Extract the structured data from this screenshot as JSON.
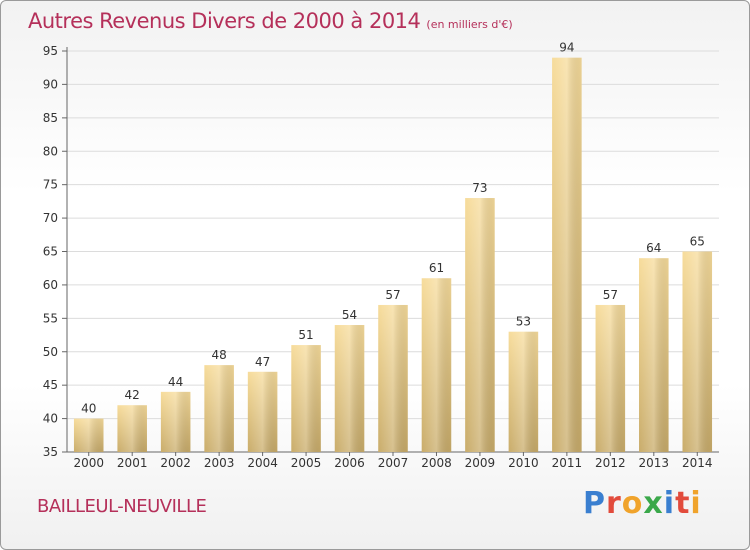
{
  "header": {
    "title": "Autres Revenus Divers de 2000 à 2014",
    "unit": "(en milliers d'€)"
  },
  "footer": {
    "place": "BAILLEUL-NEUVILLE",
    "brand": "Proxiti"
  },
  "colors": {
    "title": "#b5305a",
    "bar_light": "#f7dc9b",
    "bar_dark": "#c9ac6a",
    "logo_p": "#3a7fd0",
    "logo_r": "#e24b3c",
    "logo_o": "#f0a32b",
    "logo_x": "#3aa84a",
    "logo_i": "#3a7fd0",
    "logo_t": "#e24b3c",
    "logo_i2": "#f0a32b"
  },
  "chart_data": {
    "type": "bar",
    "categories": [
      "2000",
      "2001",
      "2002",
      "2003",
      "2004",
      "2005",
      "2006",
      "2007",
      "2008",
      "2009",
      "2010",
      "2011",
      "2012",
      "2013",
      "2014"
    ],
    "values": [
      40,
      42,
      44,
      48,
      47,
      51,
      54,
      57,
      61,
      73,
      53,
      94,
      57,
      64,
      65
    ],
    "ylim": [
      35,
      95
    ],
    "yticks": [
      35,
      40,
      45,
      50,
      55,
      60,
      65,
      70,
      75,
      80,
      85,
      90,
      95
    ],
    "grid": "horizontal",
    "data_labels": true
  }
}
